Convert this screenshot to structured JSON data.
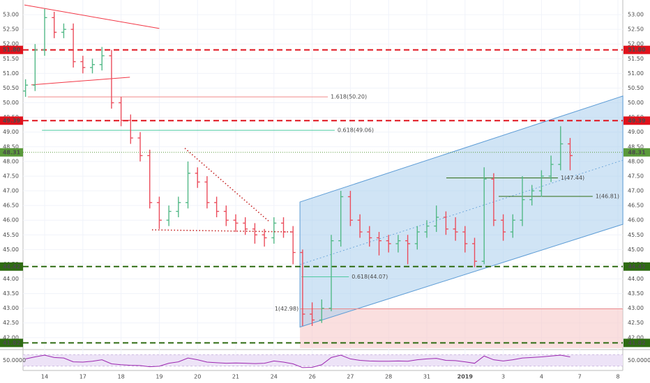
{
  "chart_data": {
    "type": "ohlc",
    "x": [
      -0.5,
      -0.25,
      0,
      0.25,
      0.5,
      0.75,
      1,
      1.25,
      1.5,
      1.75,
      2,
      2.25,
      2.5,
      2.75,
      3,
      3.25,
      3.5,
      3.75,
      4,
      4.25,
      4.5,
      4.75,
      5,
      5.25,
      5.5,
      5.75,
      6,
      6.25,
      6.5,
      6.75,
      7,
      7.25,
      7.5,
      7.75,
      8,
      8.25,
      8.5,
      8.75,
      9,
      9.25,
      9.5,
      9.75,
      10,
      10.25,
      10.5,
      10.75,
      11,
      11.25,
      11.5,
      11.75,
      12,
      12.25,
      12.5,
      12.75,
      13,
      13.25,
      13.5,
      13.75
    ],
    "open": [
      50.4,
      50.6,
      51.8,
      52.9,
      52.4,
      52.5,
      51.4,
      51.2,
      51.3,
      51.6,
      50.0,
      49.4,
      48.8,
      48.2,
      46.6,
      46.0,
      46.3,
      46.6,
      47.6,
      47.3,
      46.6,
      46.3,
      46.0,
      45.9,
      45.7,
      45.5,
      45.4,
      45.9,
      45.6,
      44.9,
      42.8,
      42.6,
      43.0,
      45.3,
      46.8,
      46.0,
      45.6,
      45.4,
      45.3,
      45.2,
      45.3,
      45.2,
      45.6,
      45.8,
      46.1,
      45.7,
      45.6,
      45.2,
      44.6,
      47.4,
      46.0,
      45.6,
      46.0,
      46.7,
      47.0,
      47.5,
      47.9,
      48.6
    ],
    "high": [
      50.8,
      52.0,
      53.2,
      53.1,
      52.7,
      52.7,
      51.6,
      51.5,
      51.9,
      51.8,
      50.2,
      49.6,
      49.0,
      48.4,
      46.8,
      46.5,
      46.8,
      48.0,
      47.8,
      47.5,
      46.8,
      46.5,
      46.2,
      46.1,
      45.9,
      45.7,
      46.1,
      46.1,
      45.8,
      45.0,
      43.2,
      43.3,
      45.5,
      47.0,
      47.0,
      46.2,
      45.8,
      45.6,
      45.5,
      45.5,
      45.5,
      45.8,
      46.0,
      46.5,
      46.3,
      46.1,
      45.8,
      45.4,
      47.8,
      47.6,
      46.2,
      46.2,
      47.5,
      47.2,
      47.7,
      48.2,
      49.2,
      48.8
    ],
    "low": [
      50.2,
      50.4,
      51.6,
      52.2,
      52.2,
      51.2,
      51.0,
      51.0,
      51.1,
      49.8,
      49.2,
      48.6,
      48.0,
      46.4,
      45.7,
      45.8,
      46.1,
      46.4,
      47.1,
      46.4,
      46.1,
      45.8,
      45.6,
      45.5,
      45.2,
      45.1,
      45.2,
      45.4,
      44.5,
      42.4,
      42.4,
      42.5,
      42.9,
      45.1,
      45.8,
      45.4,
      45.1,
      44.8,
      44.9,
      44.9,
      44.5,
      45.0,
      45.4,
      45.6,
      45.5,
      45.3,
      44.9,
      44.4,
      44.5,
      45.8,
      45.3,
      45.4,
      45.8,
      46.5,
      46.8,
      47.3,
      47.7,
      47.7
    ],
    "close": [
      50.6,
      51.8,
      52.9,
      52.4,
      52.5,
      51.4,
      51.2,
      51.3,
      51.6,
      50.0,
      49.4,
      48.8,
      48.2,
      46.6,
      46.0,
      46.3,
      46.6,
      47.6,
      47.3,
      46.6,
      46.3,
      46.0,
      45.9,
      45.7,
      45.5,
      45.4,
      45.9,
      45.6,
      44.9,
      42.8,
      42.6,
      43.0,
      45.3,
      46.8,
      46.0,
      45.6,
      45.4,
      45.3,
      45.2,
      45.3,
      45.2,
      45.6,
      45.8,
      46.1,
      45.7,
      45.6,
      45.2,
      44.6,
      47.4,
      46.0,
      45.6,
      46.0,
      46.7,
      47.0,
      47.5,
      47.9,
      48.6,
      48.2
    ],
    "up_color": "#53b987",
    "down_color": "#eb4d5c",
    "xlim": [
      -0.566,
      15.128
    ],
    "ylim": [
      41.64,
      53.5
    ],
    "xticks": [
      {
        "value": 0,
        "label": "14"
      },
      {
        "value": 1,
        "label": "17"
      },
      {
        "value": 2,
        "label": "18"
      },
      {
        "value": 3,
        "label": "19"
      },
      {
        "value": 4,
        "label": "20"
      },
      {
        "value": 5,
        "label": "21"
      },
      {
        "value": 6,
        "label": "24"
      },
      {
        "value": 7,
        "label": "26"
      },
      {
        "value": 8,
        "label": "27"
      },
      {
        "value": 9,
        "label": "28"
      },
      {
        "value": 10,
        "label": "31"
      },
      {
        "value": 11,
        "label": "2019"
      },
      {
        "value": 12,
        "label": "3"
      },
      {
        "value": 13,
        "label": "4"
      },
      {
        "value": 14,
        "label": "7"
      },
      {
        "value": 15,
        "label": "8"
      }
    ],
    "yticks": [
      {
        "value": 42,
        "label": "42.00"
      },
      {
        "value": 42.5,
        "label": "42.50"
      },
      {
        "value": 43,
        "label": "43.00"
      },
      {
        "value": 43.5,
        "label": "43.50"
      },
      {
        "value": 44,
        "label": "44.00"
      },
      {
        "value": 44.5,
        "label": "44.50"
      },
      {
        "value": 45,
        "label": "45.00"
      },
      {
        "value": 45.5,
        "label": "45.50"
      },
      {
        "value": 46,
        "label": "46.00"
      },
      {
        "value": 46.5,
        "label": "46.50"
      },
      {
        "value": 47,
        "label": "47.00"
      },
      {
        "value": 47.5,
        "label": "47.50"
      },
      {
        "value": 48,
        "label": "48.00"
      },
      {
        "value": 48.5,
        "label": "48.50"
      },
      {
        "value": 49,
        "label": "49.00"
      },
      {
        "value": 49.5,
        "label": "49.50"
      },
      {
        "value": 50,
        "label": "50.00"
      },
      {
        "value": 50.5,
        "label": "50.50"
      },
      {
        "value": 51,
        "label": "51.00"
      },
      {
        "value": 51.5,
        "label": "51.50"
      },
      {
        "value": 52,
        "label": "52.00"
      },
      {
        "value": 52.5,
        "label": "52.50"
      },
      {
        "value": 53,
        "label": "53.00"
      }
    ],
    "grid": true,
    "price_lines": [
      {
        "value": 51.8,
        "label": "51.80",
        "color": "#e0121c",
        "style": "dashed"
      },
      {
        "value": 49.39,
        "label": "49.39",
        "color": "#e0121c",
        "style": "dashed"
      },
      {
        "value": 48.31,
        "label": "48.31",
        "color": "#5a9a3a",
        "style": "dotted"
      },
      {
        "value": 44.42,
        "label": "44.42",
        "color": "#2e6b12",
        "style": "dashed"
      },
      {
        "value": 41.82,
        "label": "41.82",
        "color": "#2e6b12",
        "style": "dashed"
      }
    ],
    "fib_levels": [
      {
        "value": 50.2,
        "label": "1.618(50.20)",
        "x": [
          -0.44,
          7.41
        ],
        "color": "#f08a8a",
        "label_side": "right"
      },
      {
        "value": 49.06,
        "label": "0.618(49.06)",
        "x": [
          -0.07,
          7.59
        ],
        "color": "#4cc9a0",
        "label_side": "right"
      },
      {
        "value": 44.07,
        "label": "0.618(44.07)",
        "x": [
          6.72,
          7.96
        ],
        "color": "#4cc9a0",
        "label_side": "right"
      },
      {
        "value": 42.98,
        "label": "1(42.98)",
        "x": [
          6.68,
          15.128
        ],
        "color": "#f08a8a",
        "label_side": "left"
      },
      {
        "value": 47.44,
        "label": "1(47.44)",
        "x": [
          10.51,
          13.43
        ],
        "color": "#2e6b12",
        "label_side": "right"
      },
      {
        "value": 46.81,
        "label": "1(46.81)",
        "x": [
          11.88,
          14.34
        ],
        "color": "#2e6b12",
        "label_side": "right"
      }
    ],
    "target_zone": {
      "from": 42.98,
      "x": 6.68,
      "color": "#f6c9c9"
    },
    "trendlines": [
      {
        "points": [
          [
            -0.53,
            53.33
          ],
          [
            3.0,
            52.53
          ]
        ],
        "color": "#f23645",
        "dotted": false
      },
      {
        "points": [
          [
            -0.35,
            50.61
          ],
          [
            2.23,
            50.87
          ]
        ],
        "color": "#f23645",
        "dotted": false
      },
      {
        "points": [
          [
            3.67,
            48.45
          ],
          [
            5.87,
            45.96
          ]
        ],
        "color": "#c62828",
        "dotted": true
      },
      {
        "points": [
          [
            2.81,
            45.67
          ],
          [
            6.5,
            45.6
          ]
        ],
        "color": "#c62828",
        "dotted": true
      }
    ],
    "channel": {
      "upper": [
        [
          6.68,
          46.62
        ],
        [
          15.13,
          50.23
        ]
      ],
      "lower": [
        [
          6.68,
          42.36
        ],
        [
          15.13,
          45.86
        ]
      ],
      "color": "#5b9bd5"
    },
    "rsi": {
      "label": "50.0000",
      "ylim": [
        20,
        80
      ],
      "band": [
        30,
        70
      ],
      "color": "#9c27b0",
      "values": [
        55,
        62,
        68,
        60,
        58,
        45,
        44,
        47,
        52,
        38,
        35,
        33,
        32,
        28,
        30,
        40,
        45,
        58,
        52,
        44,
        42,
        40,
        41,
        40,
        39,
        40,
        48,
        44,
        38,
        25,
        26,
        35,
        60,
        68,
        55,
        50,
        48,
        47,
        47,
        48,
        47,
        52,
        55,
        57,
        50,
        49,
        45,
        40,
        65,
        52,
        48,
        52,
        58,
        60,
        62,
        65,
        68,
        62
      ]
    }
  }
}
